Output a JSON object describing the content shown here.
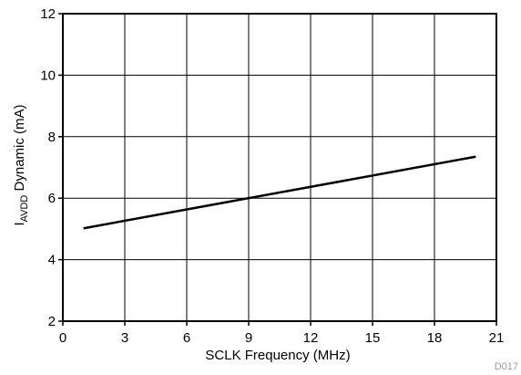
{
  "chart_data": {
    "type": "line",
    "xlabel": "SCLK Frequency (MHz)",
    "ylabel": {
      "main": "I",
      "subscript": "AVDD",
      "rest": " Dynamic (mA)"
    },
    "xlim": [
      0,
      21
    ],
    "ylim": [
      2,
      12
    ],
    "xticks": [
      0,
      3,
      6,
      9,
      12,
      15,
      18,
      21
    ],
    "yticks": [
      2,
      4,
      6,
      8,
      10,
      12
    ],
    "grid": true,
    "series": [
      {
        "x": [
          1,
          20
        ],
        "y": [
          5.02,
          7.35
        ],
        "color": "#000000"
      }
    ],
    "figure_code": "D017"
  }
}
